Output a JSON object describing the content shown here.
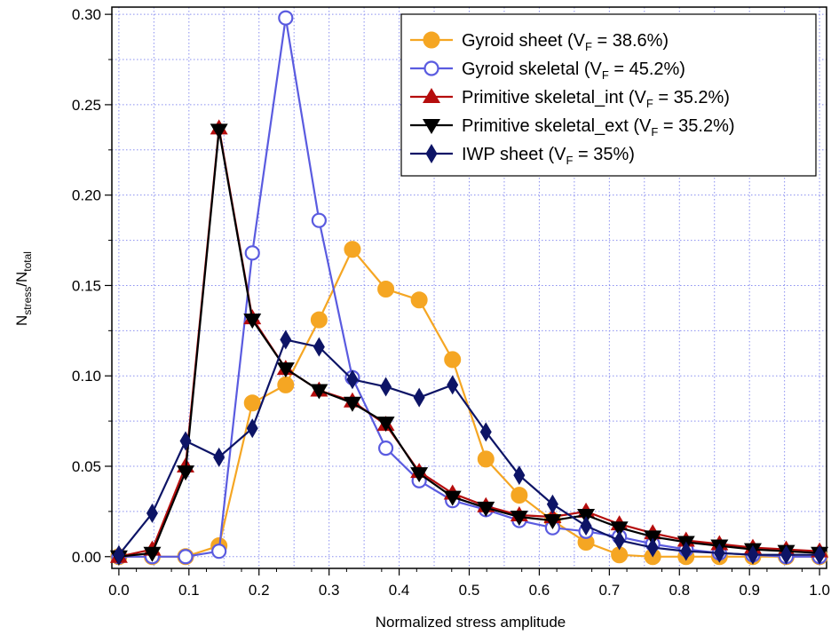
{
  "chart_data": {
    "type": "line",
    "xlabel": "Normalized stress amplitude",
    "ylabel": {
      "main": "N",
      "sub1": "stress",
      "mid": "/N",
      "sub2": "total"
    },
    "xlim": [
      -0.01,
      1.01
    ],
    "ylim": [
      -0.0065,
      0.304
    ],
    "xticks": [
      0.0,
      0.1,
      0.2,
      0.3,
      0.4,
      0.5,
      0.6,
      0.7,
      0.8,
      0.9,
      1.0
    ],
    "xtick_labels": [
      "0.0",
      "0.1",
      "0.2",
      "0.3",
      "0.4",
      "0.5",
      "0.6",
      "0.7",
      "0.8",
      "0.9",
      "1.0"
    ],
    "yticks": [
      0.0,
      0.05,
      0.1,
      0.15,
      0.2,
      0.25,
      0.3
    ],
    "ytick_labels": [
      "0.00",
      "0.05",
      "0.10",
      "0.15",
      "0.20",
      "0.25",
      "0.30"
    ],
    "grid": true,
    "legend_position": "top-right",
    "x": [
      0.0,
      0.0476,
      0.0952,
      0.1429,
      0.1905,
      0.2381,
      0.2857,
      0.3333,
      0.381,
      0.4286,
      0.4762,
      0.5238,
      0.5714,
      0.619,
      0.6667,
      0.7143,
      0.7619,
      0.8095,
      0.8571,
      0.9048,
      0.9524,
      1.0
    ],
    "series": [
      {
        "name": "Gyroid sheet (V_F = 38.6%)",
        "legend": {
          "pre": "Gyroid sheet (V",
          "sub": "F",
          "post": " = 38.6%)"
        },
        "color": "#f5a623",
        "marker": "circle-filled",
        "values": [
          0.0,
          0.0,
          0.0,
          0.006,
          0.085,
          0.095,
          0.131,
          0.17,
          0.148,
          0.142,
          0.109,
          0.054,
          0.034,
          0.02,
          0.008,
          0.001,
          0.0,
          0.0,
          0.0,
          0.0,
          0.0,
          0.0
        ]
      },
      {
        "name": "Gyroid skeletal (V_F = 45.2%)",
        "legend": {
          "pre": "Gyroid skeletal (V",
          "sub": "F",
          "post": " = 45.2%)"
        },
        "color": "#5a5be0",
        "marker": "circle-open",
        "values": [
          0.0,
          0.0,
          0.0,
          0.003,
          0.168,
          0.298,
          0.186,
          0.099,
          0.06,
          0.042,
          0.031,
          0.026,
          0.02,
          0.016,
          0.014,
          0.011,
          0.007,
          0.004,
          0.002,
          0.001,
          0.0,
          0.0
        ]
      },
      {
        "name": "Primitive skeletal_int (V_F = 35.2%)",
        "legend": {
          "pre": "Primitive skeletal_int (V",
          "sub": "F",
          "post": " = 35.2%)"
        },
        "color": "#b50d0d",
        "marker": "triangle-up",
        "values": [
          0.0,
          0.004,
          0.05,
          0.237,
          0.132,
          0.104,
          0.092,
          0.086,
          0.073,
          0.047,
          0.035,
          0.028,
          0.023,
          0.022,
          0.025,
          0.018,
          0.013,
          0.009,
          0.007,
          0.005,
          0.004,
          0.003
        ]
      },
      {
        "name": "Primitive skeletal_ext (V_F = 35.2%)",
        "legend": {
          "pre": "Primitive skeletal_ext  (V",
          "sub": "F",
          "post": " = 35.2%)"
        },
        "color": "#000000",
        "marker": "triangle-down",
        "values": [
          0.0,
          0.002,
          0.047,
          0.236,
          0.131,
          0.104,
          0.092,
          0.085,
          0.074,
          0.046,
          0.033,
          0.027,
          0.022,
          0.02,
          0.023,
          0.016,
          0.011,
          0.008,
          0.006,
          0.004,
          0.003,
          0.002
        ]
      },
      {
        "name": "IWP sheet (V_F = 35%)",
        "legend": {
          "pre": "IWP sheet (V",
          "sub": "F",
          "post": " = 35%)"
        },
        "color": "#0d1466",
        "marker": "diamond",
        "values": [
          0.001,
          0.024,
          0.064,
          0.055,
          0.071,
          0.12,
          0.116,
          0.098,
          0.094,
          0.088,
          0.095,
          0.069,
          0.045,
          0.029,
          0.017,
          0.009,
          0.005,
          0.003,
          0.002,
          0.001,
          0.001,
          0.001
        ]
      }
    ]
  }
}
